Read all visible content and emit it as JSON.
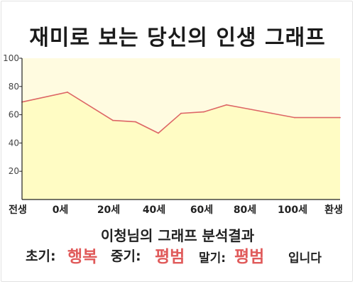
{
  "title": "재미로 보는 당신의 인생 그래프",
  "chart_data": {
    "type": "area",
    "title": "재미로 보는 당신의 인생 그래프",
    "x_categories": [
      "전생",
      "0세",
      "20세",
      "40세",
      "60세",
      "80세",
      "100세",
      "환생"
    ],
    "x": [
      -20,
      0,
      20,
      30,
      40,
      50,
      60,
      70,
      80,
      90,
      100,
      120
    ],
    "y": [
      69,
      76,
      56,
      55,
      47,
      61,
      62,
      67,
      64,
      61,
      58,
      58
    ],
    "y_ticks": [
      20,
      40,
      60,
      80,
      100
    ],
    "ylim": [
      0,
      100
    ],
    "xlabel": "",
    "ylabel": "",
    "grid": false,
    "colors": {
      "line": "#dd6666",
      "fill": "#fffcc4",
      "plot_bg": "#fffbe0"
    }
  },
  "result": {
    "title": "이청님의 그래프 분석결과",
    "early_label": "초기:",
    "early_value": "행복",
    "middle_label": "중기:",
    "middle_value": "평범",
    "late_label": "말기:",
    "late_value": "평범",
    "suffix": "입니다"
  }
}
